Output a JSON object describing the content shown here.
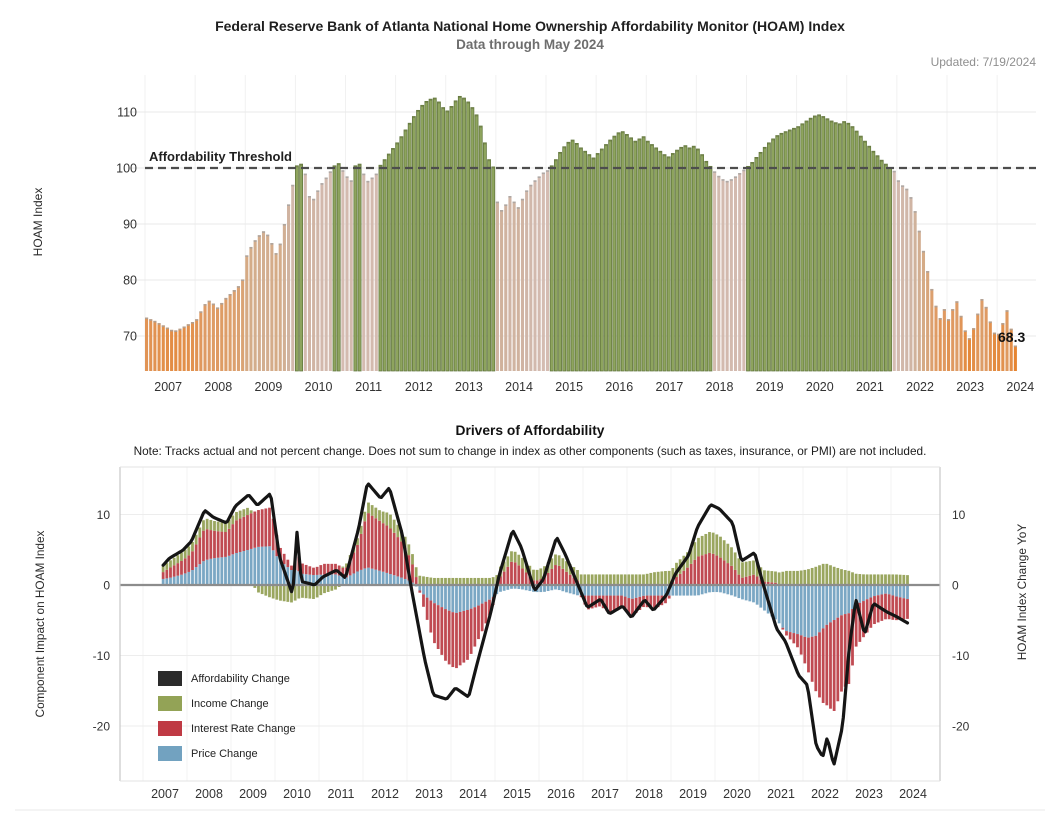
{
  "header": {
    "title": "Federal Reserve Bank of Atlanta National Home Ownership Affordability Monitor (HOAM) Index",
    "subtitle": "Data through May 2024",
    "updated": "Updated: 7/19/2024"
  },
  "chart_data": [
    {
      "type": "bar",
      "title": "Federal Reserve Bank of Atlanta National Home Ownership Affordability Monitor (HOAM) Index",
      "subtitle": "Data through May 2024",
      "ylabel": "HOAM Index",
      "yticks": [
        70,
        80,
        90,
        100,
        110
      ],
      "ylim": [
        63.8,
        116.5
      ],
      "xticks": [
        2007,
        2008,
        2009,
        2010,
        2011,
        2012,
        2013,
        2014,
        2015,
        2016,
        2017,
        2018,
        2019,
        2020,
        2021,
        2022,
        2023,
        2024
      ],
      "threshold": {
        "value": 100,
        "label": "Affordability Threshold"
      },
      "last_value": 68.3,
      "last_value_label": "68.3",
      "x_start": 2007.0,
      "x_step": "monthly",
      "x_end_label": "May 2024",
      "values": [
        73.3,
        73.0,
        72.7,
        72.3,
        71.9,
        71.5,
        71.1,
        71.0,
        71.3,
        71.7,
        72.1,
        72.5,
        73.0,
        74.4,
        75.7,
        76.3,
        75.8,
        75.1,
        75.9,
        76.8,
        77.5,
        78.2,
        78.9,
        80.1,
        84.4,
        85.9,
        87.1,
        88.0,
        88.7,
        88.1,
        86.6,
        84.8,
        86.5,
        90.0,
        93.5,
        97.0,
        100.4,
        100.7,
        99.0,
        95.0,
        94.5,
        96.0,
        97.3,
        98.3,
        99.4,
        100.4,
        100.8,
        99.6,
        98.5,
        97.8,
        100.4,
        100.7,
        99.0,
        97.7,
        98.3,
        99.0,
        100.5,
        101.5,
        102.5,
        103.5,
        104.5,
        105.6,
        106.8,
        108.0,
        109.2,
        110.3,
        111.2,
        111.9,
        112.3,
        112.5,
        111.8,
        110.8,
        110.2,
        111.0,
        112.0,
        112.8,
        112.5,
        111.8,
        110.8,
        109.5,
        107.5,
        104.5,
        101.5,
        100.2,
        94.0,
        92.5,
        93.5,
        95.0,
        94.0,
        93.0,
        94.5,
        96.0,
        97.0,
        97.8,
        98.5,
        99.2,
        99.6,
        100.4,
        101.5,
        102.8,
        103.8,
        104.6,
        105.0,
        104.4,
        103.6,
        103.0,
        102.4,
        101.8,
        102.6,
        103.4,
        104.2,
        105.0,
        105.7,
        106.3,
        106.5,
        106.0,
        105.4,
        104.8,
        105.2,
        105.6,
        104.8,
        104.2,
        103.6,
        103.0,
        102.4,
        102.0,
        102.6,
        103.2,
        103.7,
        104.0,
        103.6,
        103.9,
        103.4,
        102.4,
        101.2,
        100.3,
        99.4,
        98.6,
        98.0,
        97.7,
        98.0,
        98.5,
        99.1,
        99.7,
        100.3,
        101.0,
        101.9,
        102.8,
        103.7,
        104.5,
        105.2,
        105.8,
        106.2,
        106.5,
        106.8,
        107.1,
        107.4,
        107.9,
        108.4,
        108.9,
        109.3,
        109.5,
        109.2,
        108.8,
        108.4,
        108.1,
        107.9,
        108.3,
        108.0,
        107.4,
        106.6,
        105.7,
        104.8,
        103.9,
        103.0,
        102.2,
        101.4,
        100.7,
        100.1,
        99.5,
        97.8,
        96.9,
        96.3,
        94.8,
        92.3,
        88.8,
        85.2,
        81.6,
        78.4,
        75.4,
        73.2,
        74.8,
        73.0,
        74.8,
        76.2,
        73.6,
        71.0,
        69.6,
        71.4,
        74.0,
        76.6,
        75.2,
        72.6,
        70.6,
        70.4,
        72.3,
        74.6,
        71.3,
        68.3
      ],
      "colors": {
        "above_threshold_fill": "#8ea45e",
        "above_threshold_stroke": "#5e7339",
        "gradient_stops": [
          [
            68,
            "#e6832e"
          ],
          [
            75,
            "#df9a62"
          ],
          [
            83,
            "#d7a980"
          ],
          [
            91,
            "#d0b097"
          ],
          [
            96,
            "#d0b6a8"
          ],
          [
            100,
            "#d5bdb3"
          ]
        ],
        "threshold_line": "#4d4d4d",
        "grid": "#e9e9e9"
      }
    },
    {
      "type": "bar+line",
      "title": "Drivers of Affordability",
      "note": "Note: Tracks actual and not percent change. Does not sum to change in index as other components (such as taxes, insurance, or PMI) are not included.",
      "ylabel_left": "Component Impact on HOAM Index",
      "ylabel_right": "HOAM Index Change YoY",
      "yticks": [
        10,
        0,
        -10,
        -20
      ],
      "ylim": [
        -27.5,
        16.5
      ],
      "xticks": [
        2007,
        2008,
        2009,
        2010,
        2011,
        2012,
        2013,
        2014,
        2015,
        2016,
        2017,
        2018,
        2019,
        2020,
        2021,
        2022,
        2023,
        2024
      ],
      "legend": [
        {
          "label": "Affordability Change",
          "color": "#2b2b2b"
        },
        {
          "label": "Income Change",
          "color": "#93a356"
        },
        {
          "label": "Interest Rate Change",
          "color": "#bf3a44"
        },
        {
          "label": "Price Change",
          "color": "#72a2c0"
        }
      ],
      "series_anchors": {
        "comment": "quarterly-resolution estimates read from the chart; t in decimal years",
        "t": [
          2007.4,
          2007.6,
          2007.9,
          2008.1,
          2008.4,
          2008.6,
          2008.9,
          2009.1,
          2009.4,
          2009.6,
          2009.9,
          2010.1,
          2010.4,
          2010.5,
          2010.6,
          2010.9,
          2011.1,
          2011.4,
          2011.6,
          2011.9,
          2012.1,
          2012.4,
          2012.6,
          2012.9,
          2013.1,
          2013.4,
          2013.6,
          2013.9,
          2014.1,
          2014.4,
          2014.6,
          2014.9,
          2015.1,
          2015.4,
          2015.6,
          2015.9,
          2016.1,
          2016.4,
          2016.6,
          2016.9,
          2017.1,
          2017.4,
          2017.6,
          2017.9,
          2018.1,
          2018.4,
          2018.6,
          2018.9,
          2019.1,
          2019.4,
          2019.6,
          2019.9,
          2020.1,
          2020.4,
          2020.6,
          2020.9,
          2021.1,
          2021.4,
          2021.6,
          2021.9,
          2022.1,
          2022.3,
          2022.45,
          2022.55,
          2022.7,
          2022.9,
          2023.05,
          2023.2,
          2023.4,
          2023.6,
          2023.9,
          2024.1,
          2024.38
        ],
        "affordability_change_line": [
          2.4,
          3.8,
          4.9,
          6.2,
          10.6,
          9.6,
          8.8,
          11.2,
          12.8,
          11.3,
          13.0,
          4.0,
          -1.4,
          7.5,
          0.5,
          0.0,
          1.2,
          2.1,
          1.0,
          8.0,
          14.5,
          12.3,
          13.8,
          7.0,
          -0.5,
          -10.5,
          -15.6,
          -16.2,
          -14.6,
          -15.9,
          -11.0,
          -4.0,
          1.5,
          7.8,
          5.3,
          -0.8,
          0.8,
          6.8,
          4.3,
          -0.2,
          -3.2,
          -2.0,
          -4.1,
          -3.0,
          -4.6,
          -2.1,
          -3.6,
          -1.4,
          1.6,
          4.2,
          8.2,
          11.4,
          10.8,
          8.8,
          3.4,
          4.6,
          0.0,
          -6.2,
          -8.0,
          -12.8,
          -14.2,
          -22.8,
          -24.4,
          -21.6,
          -25.6,
          -20.0,
          -9.0,
          -2.0,
          -7.0,
          -2.6,
          -3.8,
          -4.4,
          -5.4
        ],
        "income_change": [
          0.8,
          1.0,
          1.2,
          1.3,
          1.5,
          1.4,
          1.3,
          1.2,
          1.0,
          -1.0,
          -1.8,
          -2.2,
          -2.5,
          -2.0,
          -1.8,
          -2.0,
          -1.2,
          -0.6,
          0.5,
          1.0,
          1.5,
          1.5,
          2.0,
          1.6,
          1.5,
          1.2,
          1.0,
          1.0,
          1.0,
          1.0,
          1.0,
          1.0,
          1.4,
          1.5,
          1.5,
          1.5,
          1.5,
          1.5,
          1.5,
          1.5,
          1.5,
          1.5,
          1.5,
          1.5,
          1.5,
          1.5,
          1.8,
          2.0,
          2.0,
          2.2,
          2.6,
          3.0,
          3.0,
          2.6,
          2.2,
          2.0,
          1.6,
          1.6,
          2.0,
          2.0,
          2.2,
          2.6,
          3.0,
          3.0,
          2.6,
          2.2,
          2.0,
          1.6,
          1.5,
          1.5,
          1.5,
          1.5,
          1.4
        ],
        "interest_rate_change": [
          0.8,
          1.4,
          2.0,
          2.5,
          4.5,
          3.9,
          3.5,
          4.6,
          5.0,
          5.2,
          5.5,
          2.0,
          0.5,
          2.5,
          1.5,
          1.0,
          1.5,
          1.5,
          1.2,
          4.0,
          7.8,
          7.0,
          6.6,
          5.0,
          3.0,
          -2.2,
          -5.5,
          -7.5,
          -7.9,
          -7.0,
          -5.0,
          -2.0,
          1.0,
          3.5,
          2.5,
          0.5,
          1.0,
          3.0,
          2.0,
          0.5,
          -2.0,
          -1.5,
          -2.5,
          -1.6,
          -2.5,
          -1.5,
          -2.0,
          -1.0,
          1.0,
          2.6,
          4.0,
          4.6,
          4.0,
          2.6,
          1.0,
          1.5,
          0.5,
          0.3,
          -0.5,
          -2.0,
          -4.5,
          -8.0,
          -10.5,
          -11.5,
          -13.0,
          -10.5,
          -10.0,
          -6.0,
          -5.0,
          -4.0,
          -3.6,
          -3.4,
          -2.8
        ],
        "price_change": [
          0.8,
          1.0,
          1.5,
          2.0,
          3.5,
          3.8,
          4.0,
          4.5,
          5.0,
          5.4,
          5.5,
          3.5,
          2.0,
          2.2,
          1.6,
          1.4,
          1.5,
          1.5,
          1.0,
          2.0,
          2.5,
          2.0,
          1.6,
          1.0,
          0.5,
          -1.5,
          -2.5,
          -3.5,
          -4.0,
          -3.5,
          -3.0,
          -2.0,
          -1.0,
          -0.5,
          -0.6,
          -1.0,
          -1.0,
          -0.6,
          -1.0,
          -1.5,
          -1.5,
          -1.5,
          -1.5,
          -1.5,
          -2.0,
          -1.5,
          -1.5,
          -1.5,
          -1.5,
          -1.5,
          -1.5,
          -1.0,
          -1.0,
          -1.5,
          -2.0,
          -2.5,
          -3.5,
          -5.0,
          -6.5,
          -7.0,
          -7.5,
          -7.2,
          -6.2,
          -5.6,
          -5.0,
          -4.2,
          -4.0,
          -2.8,
          -2.2,
          -1.6,
          -1.2,
          -1.6,
          -2.0
        ],
        "x_range": [
          2007.458,
          2024.375
        ]
      },
      "colors": {
        "income_bar": "#9aa65f",
        "interest_rate_bar": "#c04a52",
        "price_bar": "#7aa7c4",
        "line": "#151515",
        "zero_line": "#8c8c8c",
        "grid": "#ededed",
        "frame": "#c8c8c8"
      }
    }
  ]
}
